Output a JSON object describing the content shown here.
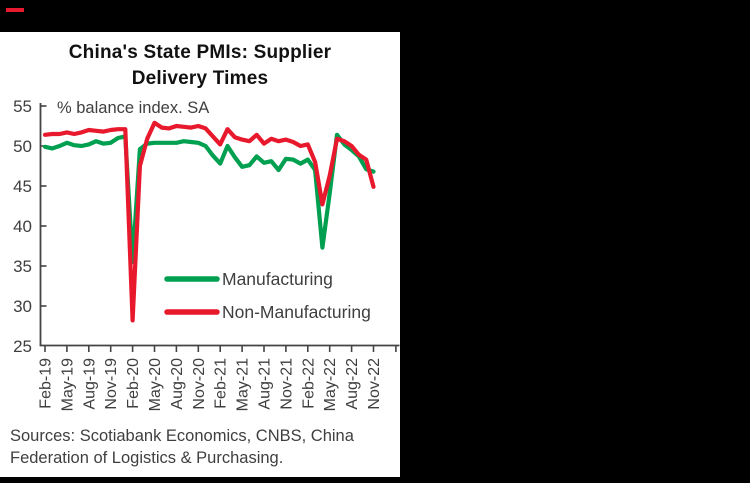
{
  "window": {
    "background_color": "#000000",
    "panel_color": "#ffffff",
    "accent_dash_color": "#e8192c"
  },
  "title": {
    "line1": "China's State PMIs: Supplier",
    "line2": "Delivery Times"
  },
  "source_note": {
    "line1": "Sources: Scotiabank Economics, CNBS, China",
    "line2": "Federation of Logistics & Purchasing."
  },
  "chart_data": {
    "type": "line",
    "title": "China's State PMIs: Supplier Delivery Times",
    "annotation": "% balance index. SA",
    "ylabel": "% balance index. SA",
    "ylim": [
      25,
      55
    ],
    "yticks": [
      55,
      50,
      45,
      40,
      35,
      30,
      25
    ],
    "grid": "off",
    "legend_position": "inside-center-left",
    "x": [
      "Feb-19",
      "Mar-19",
      "Apr-19",
      "May-19",
      "Jun-19",
      "Jul-19",
      "Aug-19",
      "Sep-19",
      "Oct-19",
      "Nov-19",
      "Dec-19",
      "Jan-20",
      "Feb-20",
      "Mar-20",
      "Apr-20",
      "May-20",
      "Jun-20",
      "Jul-20",
      "Aug-20",
      "Sep-20",
      "Oct-20",
      "Nov-20",
      "Dec-20",
      "Jan-21",
      "Feb-21",
      "Mar-21",
      "Apr-21",
      "May-21",
      "Jun-21",
      "Jul-21",
      "Aug-21",
      "Sep-21",
      "Oct-21",
      "Nov-21",
      "Dec-21",
      "Jan-22",
      "Feb-22",
      "Mar-22",
      "Apr-22",
      "May-22",
      "Jun-22",
      "Jul-22",
      "Aug-22",
      "Sep-22",
      "Oct-22",
      "Nov-22"
    ],
    "x_tick_labels": [
      "Feb-19",
      "May-19",
      "Aug-19",
      "Nov-19",
      "Feb-20",
      "May-20",
      "Aug-20",
      "Nov-20",
      "Feb-21",
      "May-21",
      "Aug-21",
      "Nov-21",
      "Feb-22",
      "May-22",
      "Aug-22",
      "Nov-22"
    ],
    "series": [
      {
        "name": "Manufacturing",
        "color": "#00a050",
        "values": [
          49.9,
          49.7,
          50.0,
          50.4,
          50.1,
          50.0,
          50.2,
          50.6,
          50.3,
          50.4,
          51.0,
          51.2,
          35.5,
          49.6,
          50.3,
          50.4,
          50.4,
          50.4,
          50.4,
          50.6,
          50.5,
          50.4,
          50.0,
          48.8,
          47.8,
          50.0,
          48.6,
          47.4,
          47.6,
          48.7,
          47.9,
          48.1,
          47.0,
          48.4,
          48.3,
          47.8,
          48.3,
          47.0,
          37.3,
          44.1,
          51.4,
          50.2,
          49.5,
          48.7,
          47.1,
          46.8
        ]
      },
      {
        "name": "Non-Manufacturing",
        "color": "#e8192c",
        "values": [
          51.4,
          51.5,
          51.5,
          51.7,
          51.5,
          51.7,
          52.0,
          51.9,
          51.8,
          52.0,
          52.1,
          52.1,
          28.2,
          47.5,
          50.9,
          52.9,
          52.3,
          52.2,
          52.5,
          52.4,
          52.3,
          52.5,
          52.2,
          51.2,
          50.2,
          52.1,
          51.1,
          50.8,
          50.6,
          51.4,
          50.3,
          50.9,
          50.6,
          50.8,
          50.5,
          50.0,
          50.2,
          48.0,
          42.7,
          46.3,
          50.9,
          50.6,
          50.0,
          48.9,
          48.3,
          44.9
        ]
      }
    ]
  }
}
